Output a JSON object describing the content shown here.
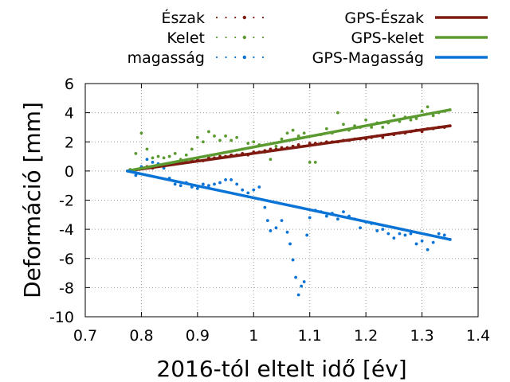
{
  "chart_data": {
    "type": "scatter",
    "xlabel": "2016-tól eltelt idő [év]",
    "ylabel": "Deformáció [mm]",
    "xlim": [
      0.7,
      1.4
    ],
    "ylim": [
      -10,
      6
    ],
    "xticks": [
      "0.7",
      "0.8",
      "0.9",
      "1",
      "1.1",
      "1.2",
      "1.3",
      "1.4"
    ],
    "yticks": [
      "6",
      "4",
      "2",
      "0",
      "-2",
      "-4",
      "-6",
      "-8",
      "-10"
    ],
    "grid": true,
    "legend_position": "top",
    "series": [
      {
        "name": "Észak",
        "kind": "dots",
        "color": "#7f1a10",
        "x": [
          0.78,
          0.79,
          0.8,
          0.81,
          0.82,
          0.83,
          0.84,
          0.85,
          0.86,
          0.87,
          0.88,
          0.89,
          0.9,
          0.91,
          0.92,
          0.93,
          0.94,
          0.95,
          0.96,
          0.97,
          0.98,
          0.99,
          1.0,
          1.01,
          1.02,
          1.03,
          1.04,
          1.05,
          1.06,
          1.07,
          1.08,
          1.09,
          1.1,
          1.11,
          1.12,
          1.13,
          1.14,
          1.15,
          1.16,
          1.17,
          1.18,
          1.19,
          1.2,
          1.21,
          1.22,
          1.23,
          1.24,
          1.25,
          1.26,
          1.27,
          1.28,
          1.29,
          1.3,
          1.31,
          1.32,
          1.33,
          1.34,
          1.35
        ],
        "y": [
          0.0,
          0.1,
          0.2,
          0.3,
          0.2,
          0.4,
          0.3,
          0.5,
          0.5,
          0.6,
          0.6,
          0.7,
          0.8,
          0.7,
          0.9,
          0.9,
          1.0,
          1.0,
          1.1,
          1.1,
          1.2,
          1.1,
          1.3,
          1.3,
          1.4,
          1.5,
          1.5,
          1.6,
          1.6,
          1.7,
          1.8,
          1.7,
          1.9,
          1.9,
          1.9,
          2.0,
          2.0,
          2.0,
          2.1,
          2.1,
          2.2,
          2.2,
          2.2,
          2.3,
          2.4,
          2.3,
          2.5,
          2.5,
          2.6,
          2.6,
          2.7,
          2.8,
          2.7,
          2.9,
          2.9,
          3.0,
          3.0,
          3.1
        ]
      },
      {
        "name": "Kelet",
        "kind": "dots",
        "color": "#5b9a30",
        "x": [
          0.78,
          0.79,
          0.8,
          0.81,
          0.82,
          0.83,
          0.84,
          0.85,
          0.86,
          0.87,
          0.88,
          0.89,
          0.9,
          0.91,
          0.92,
          0.93,
          0.94,
          0.95,
          0.96,
          0.97,
          0.98,
          0.99,
          1.0,
          1.01,
          1.02,
          1.03,
          1.04,
          1.05,
          1.06,
          1.07,
          1.08,
          1.09,
          1.1,
          1.11,
          1.12,
          1.13,
          1.14,
          1.15,
          1.16,
          1.17,
          1.18,
          1.19,
          1.2,
          1.21,
          1.22,
          1.23,
          1.24,
          1.25,
          1.26,
          1.27,
          1.28,
          1.29,
          1.3,
          1.31,
          1.32,
          1.33,
          1.34,
          1.35
        ],
        "y": [
          0.1,
          1.2,
          2.6,
          1.5,
          0.9,
          1.0,
          0.9,
          1.0,
          1.2,
          0.8,
          1.1,
          1.5,
          2.3,
          2.0,
          2.7,
          2.4,
          2.1,
          2.4,
          2.1,
          2.3,
          1.5,
          1.9,
          2.0,
          1.8,
          1.3,
          0.8,
          1.7,
          2.2,
          2.6,
          2.8,
          2.4,
          2.6,
          0.6,
          0.6,
          2.5,
          2.9,
          2.6,
          4.0,
          3.2,
          2.8,
          3.1,
          3.0,
          3.5,
          3.0,
          3.3,
          3.0,
          3.3,
          3.8,
          3.4,
          3.7,
          3.5,
          3.6,
          4.1,
          4.4,
          3.8,
          4.0,
          4.1,
          4.2
        ]
      },
      {
        "name": "magasság",
        "kind": "dots",
        "color": "#0a73d6",
        "x": [
          0.78,
          0.79,
          0.8,
          0.81,
          0.82,
          0.83,
          0.84,
          0.85,
          0.86,
          0.87,
          0.88,
          0.89,
          0.9,
          0.91,
          0.92,
          0.93,
          0.94,
          0.95,
          0.96,
          0.97,
          0.98,
          0.99,
          1.0,
          1.01,
          1.02,
          1.025,
          1.03,
          1.04,
          1.05,
          1.06,
          1.065,
          1.07,
          1.075,
          1.08,
          1.085,
          1.09,
          1.095,
          1.1,
          1.11,
          1.12,
          1.13,
          1.14,
          1.15,
          1.16,
          1.17,
          1.18,
          1.19,
          1.2,
          1.21,
          1.22,
          1.23,
          1.24,
          1.25,
          1.26,
          1.27,
          1.28,
          1.29,
          1.3,
          1.31,
          1.32,
          1.33,
          1.34,
          1.35
        ],
        "y": [
          0.0,
          -0.3,
          0.3,
          0.8,
          0.6,
          0.5,
          0.2,
          -0.5,
          -0.9,
          -1.0,
          -0.8,
          -1.1,
          -1.2,
          -0.9,
          -1.0,
          -0.9,
          -0.8,
          -0.6,
          -0.6,
          -0.9,
          -1.3,
          -1.5,
          -1.3,
          -1.1,
          -2.5,
          -3.4,
          -4.1,
          -3.9,
          -3.4,
          -4.2,
          -5.0,
          -6.1,
          -7.3,
          -8.5,
          -7.9,
          -7.6,
          -4.4,
          -3.2,
          -2.7,
          -2.8,
          -3.1,
          -2.9,
          -3.3,
          -2.8,
          -3.1,
          -3.3,
          -3.9,
          -3.5,
          -3.6,
          -4.1,
          -4.0,
          -4.3,
          -4.6,
          -4.3,
          -4.4,
          -4.3,
          -5.0,
          -4.8,
          -5.4,
          -4.9,
          -4.3,
          -4.4,
          -4.7
        ]
      },
      {
        "name": "GPS-Észak",
        "kind": "line",
        "color": "#7f1a10",
        "x": [
          0.775,
          1.35
        ],
        "y": [
          0.0,
          3.1
        ]
      },
      {
        "name": "GPS-kelet",
        "kind": "line",
        "color": "#5b9a30",
        "x": [
          0.775,
          1.35
        ],
        "y": [
          0.0,
          4.2
        ]
      },
      {
        "name": "GPS-Magasság",
        "kind": "line",
        "color": "#0a73d6",
        "x": [
          0.775,
          1.35
        ],
        "y": [
          0.0,
          -4.7
        ]
      }
    ]
  }
}
